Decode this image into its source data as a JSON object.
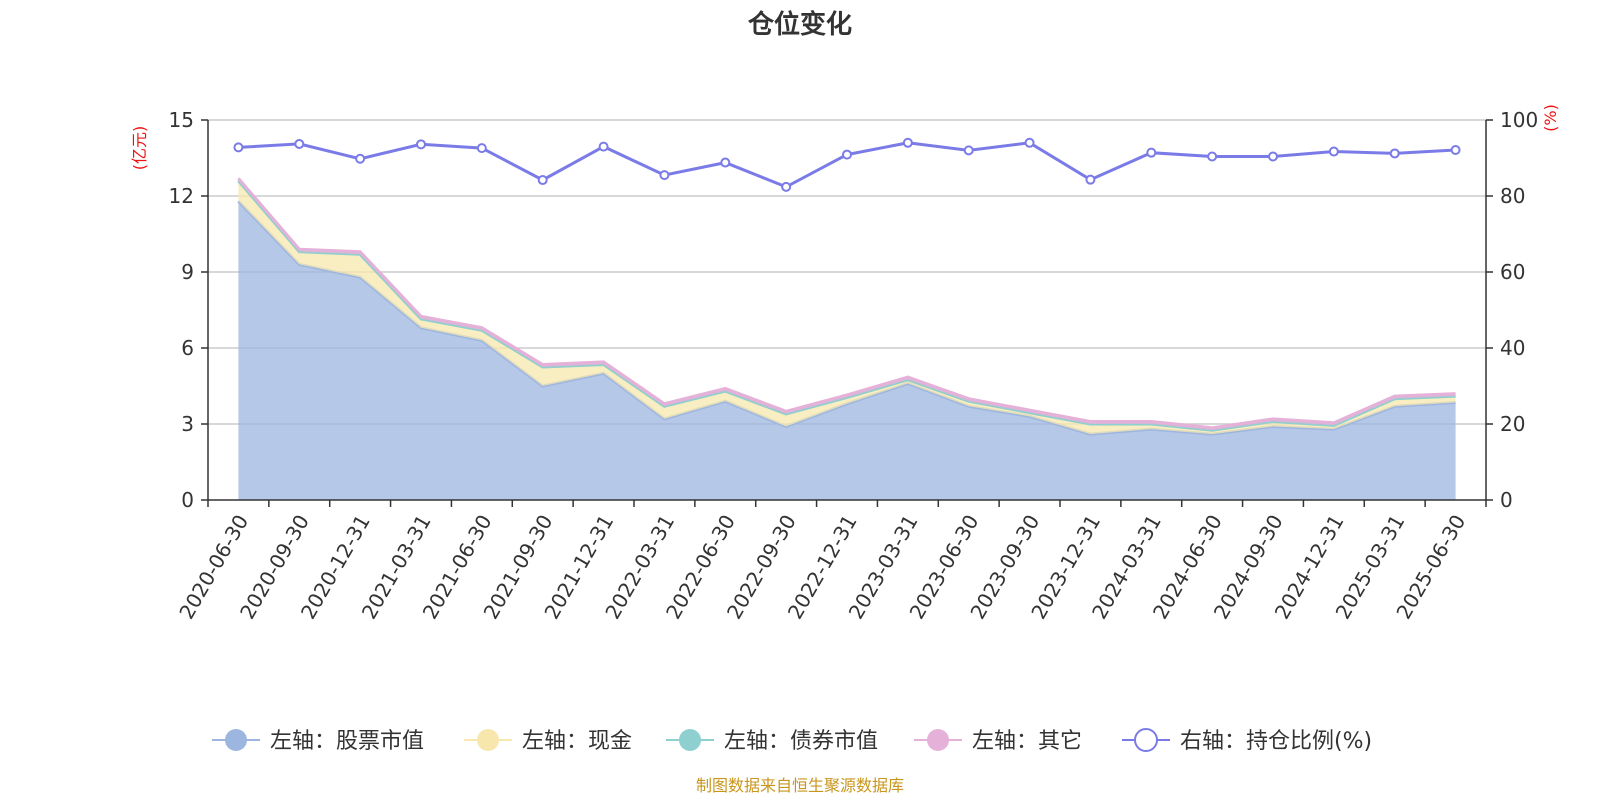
{
  "title": "仓位变化",
  "footer": "制图数据来自恒生聚源数据库",
  "colors": {
    "stock": "#9db6e0",
    "cash": "#f7e7ad",
    "bond": "#8dd0cf",
    "other": "#e5b1d8",
    "ratio": "#7b7be8",
    "unit": "#ee1111"
  },
  "chart_data": {
    "type": "area",
    "title": "仓位变化",
    "stacked": true,
    "categories": [
      "2020-06-30",
      "2020-09-30",
      "2020-12-31",
      "2021-03-31",
      "2021-06-30",
      "2021-09-30",
      "2021-12-31",
      "2022-03-31",
      "2022-06-30",
      "2022-09-30",
      "2022-12-31",
      "2023-03-31",
      "2023-06-30",
      "2023-09-30",
      "2023-12-31",
      "2024-03-31",
      "2024-06-30",
      "2024-09-30",
      "2024-12-31",
      "2025-03-31",
      "2025-06-30"
    ],
    "left_axis": {
      "unit": "(亿元)",
      "ylim": [
        0,
        15
      ],
      "ticks": [
        0,
        3,
        6,
        9,
        12,
        15
      ]
    },
    "right_axis": {
      "unit": "(%)",
      "ylim": [
        0,
        100
      ],
      "ticks": [
        0,
        20,
        40,
        60,
        80,
        100
      ]
    },
    "series": [
      {
        "name": "左轴：股票市值",
        "axis": "left",
        "kind": "area",
        "color": "#9db6e0",
        "values": [
          11.8,
          9.3,
          8.8,
          6.8,
          6.3,
          4.5,
          5.0,
          3.2,
          3.9,
          2.9,
          3.8,
          4.6,
          3.7,
          3.3,
          2.6,
          2.8,
          2.6,
          2.9,
          2.8,
          3.7,
          3.85
        ]
      },
      {
        "name": "左轴：现金",
        "axis": "left",
        "kind": "area",
        "color": "#f7e7ad",
        "values": [
          0.8,
          0.5,
          0.9,
          0.35,
          0.4,
          0.75,
          0.35,
          0.5,
          0.4,
          0.5,
          0.25,
          0.15,
          0.2,
          0.15,
          0.4,
          0.2,
          0.15,
          0.2,
          0.15,
          0.3,
          0.25
        ]
      },
      {
        "name": "左轴：债券市值",
        "axis": "left",
        "kind": "area",
        "color": "#8dd0cf",
        "values": [
          0,
          0,
          0,
          0,
          0,
          0,
          0,
          0,
          0,
          0,
          0,
          0,
          0,
          0,
          0,
          0,
          0,
          0,
          0,
          0,
          0
        ]
      },
      {
        "name": "左轴：其它",
        "axis": "left",
        "kind": "area",
        "color": "#e5b1d8",
        "values": [
          0.1,
          0.1,
          0.1,
          0.1,
          0.1,
          0.1,
          0.1,
          0.1,
          0.1,
          0.1,
          0.1,
          0.1,
          0.1,
          0.1,
          0.1,
          0.1,
          0.1,
          0.1,
          0.1,
          0.1,
          0.1
        ]
      },
      {
        "name": "右轴：持仓比例(%)",
        "axis": "right",
        "kind": "line",
        "color": "#7b7be8",
        "values": [
          92.8,
          93.7,
          89.8,
          93.6,
          92.6,
          84.2,
          93.0,
          85.5,
          88.8,
          82.4,
          90.9,
          94.0,
          92.0,
          94.0,
          84.3,
          91.4,
          90.4,
          90.4,
          91.7,
          91.2,
          92.1
        ]
      }
    ],
    "grid": true,
    "legend": "bottom"
  }
}
